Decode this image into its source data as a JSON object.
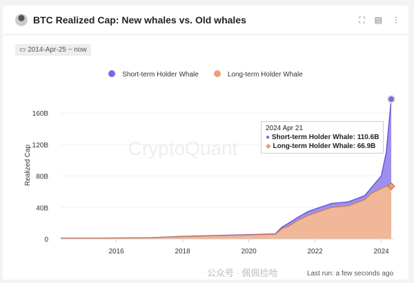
{
  "header": {
    "title": "BTC Realized Cap: New whales vs. Old whales"
  },
  "date_range": "2014-Apr-25 ~ now",
  "footer": {
    "last_run": "Last run: a few seconds ago",
    "watermark": "公众号 · 佩佩捡哈"
  },
  "colors": {
    "sth": "#7b68e0",
    "lth": "#e8a07a"
  },
  "tooltip": {
    "date": "2024 Apr 21",
    "sth": "Short-term Holder Whale: 110.6B",
    "lth": "Long-term Holder Whale: 66.9B"
  },
  "chart_data": {
    "type": "area",
    "stacked": true,
    "ylabel": "Realized Cap",
    "watermark": "CryptoQuant",
    "ylim": [
      0,
      180
    ],
    "yticks": [
      0,
      40,
      80,
      120,
      160
    ],
    "ytick_labels": [
      "0",
      "40B",
      "80B",
      "120B",
      "160B"
    ],
    "xlim": [
      2014.32,
      2024.7
    ],
    "xticks": [
      2016,
      2018,
      2020,
      2022,
      2024
    ],
    "legend": "top-center",
    "x": [
      2014.32,
      2015,
      2016,
      2017,
      2018,
      2019,
      2020,
      2020.8,
      2021.0,
      2021.2,
      2021.5,
      2021.8,
      2022.0,
      2022.5,
      2023.0,
      2023.5,
      2023.7,
      2024.0,
      2024.15,
      2024.3
    ],
    "series": [
      {
        "name": "Long-term Holder Whale",
        "values": [
          1,
          1,
          1.2,
          1.5,
          3,
          4,
          5,
          6,
          13,
          16,
          24,
          30,
          33,
          40,
          42,
          50,
          58,
          64,
          67,
          66.9
        ]
      },
      {
        "name": "Short-term Holder Whale",
        "values": [
          0,
          0,
          0,
          0,
          0.3,
          0.4,
          0.5,
          0.5,
          2,
          4,
          4,
          5,
          5,
          5,
          5,
          5,
          7,
          16,
          43,
          110.6
        ]
      }
    ]
  }
}
